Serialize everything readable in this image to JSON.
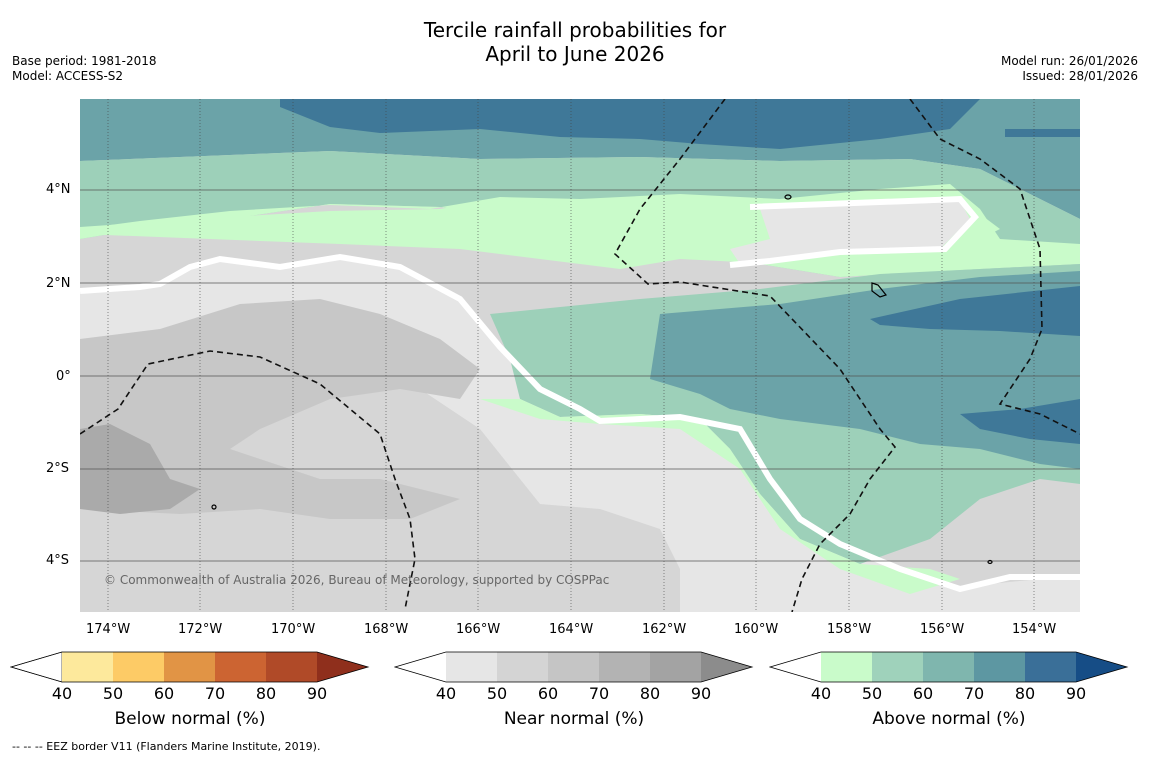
{
  "title_line1": "Tercile rainfall probabilities for",
  "title_line2": "April to June 2026",
  "base_period": "Base period: 1981-2018",
  "model": "Model: ACCESS-S2",
  "model_run": "Model run: 26/01/2026",
  "issued": "Issued: 28/01/2026",
  "copyright": "© Commonwealth of Australia 2026, Bureau of Meteorology, supported by COSPPac",
  "footer_note": "--  --  -- EEZ border V11 (Flanders Marine Institute, 2019).",
  "lat_labels": [
    "4°N",
    "2°N",
    "0°",
    "2°S",
    "4°S"
  ],
  "lon_labels": [
    "174°W",
    "172°W",
    "170°W",
    "168°W",
    "166°W",
    "164°W",
    "162°W",
    "160°W",
    "158°W",
    "156°W",
    "154°W"
  ],
  "legends": {
    "below": {
      "title": "Below normal (%)",
      "ticks": [
        "40",
        "50",
        "60",
        "70",
        "80",
        "90"
      ],
      "colors": [
        "#ffffff",
        "#fde99c",
        "#fdcb66",
        "#e19445",
        "#cc6432",
        "#b04a28",
        "#8f2f1c"
      ]
    },
    "near": {
      "title": "Near normal (%)",
      "ticks": [
        "40",
        "50",
        "60",
        "70",
        "80",
        "90"
      ],
      "colors": [
        "#ffffff",
        "#e6e6e6",
        "#d4d4d4",
        "#c5c5c5",
        "#b3b3b3",
        "#a3a3a3",
        "#8c8c8c"
      ]
    },
    "above": {
      "title": "Above normal (%)",
      "ticks": [
        "40",
        "50",
        "60",
        "70",
        "80",
        "90"
      ],
      "colors": [
        "#ffffff",
        "#c9fbca",
        "#9fd2bb",
        "#7fb6ae",
        "#5d97a2",
        "#3a6f98",
        "#164d86"
      ]
    }
  },
  "map_colors": {
    "above_90": "#3f7898",
    "above_80": "#6ba3a8",
    "above_60": "#9dd0b9",
    "above_50": "#c9fbca",
    "near_40": "#e6e6e6",
    "near_50": "#d6d6d6",
    "near_60": "#c7c7c7",
    "near_70": "#aaaaaa"
  }
}
